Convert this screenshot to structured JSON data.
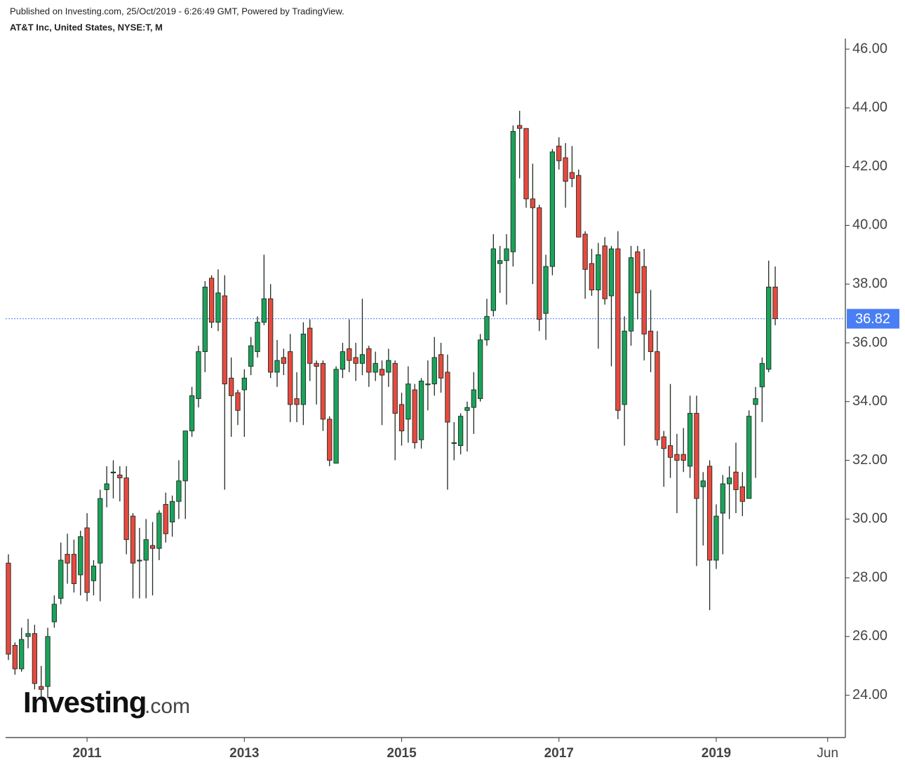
{
  "header": {
    "published": "Published on Investing.com, 25/Oct/2019 - 6:26:49 GMT, Powered by TradingView.",
    "symbol": "AT&T Inc, United States, NYSE:T, M"
  },
  "watermark": {
    "name": "Investing",
    "suffix": ".com"
  },
  "chart_data": {
    "type": "candlestick",
    "categories": [
      null,
      null,
      null,
      null,
      null,
      null,
      null,
      null,
      null,
      null,
      null,
      null,
      "2011",
      null,
      null,
      null,
      null,
      null,
      null,
      null,
      null,
      null,
      null,
      null,
      null,
      null,
      null,
      null,
      null,
      null,
      null,
      null,
      null,
      null,
      null,
      null,
      "2013",
      null,
      null,
      null,
      null,
      null,
      null,
      null,
      null,
      null,
      null,
      null,
      null,
      null,
      null,
      null,
      null,
      null,
      null,
      null,
      null,
      null,
      null,
      null,
      "2015",
      null,
      null,
      null,
      null,
      null,
      null,
      null,
      null,
      null,
      null,
      null,
      null,
      null,
      null,
      null,
      null,
      null,
      null,
      null,
      null,
      null,
      null,
      null,
      "2017",
      null,
      null,
      null,
      null,
      null,
      null,
      null,
      null,
      null,
      null,
      null,
      null,
      null,
      null,
      null,
      null,
      null,
      null,
      null,
      null,
      null,
      null,
      null,
      "2019",
      null,
      null,
      null,
      null,
      null,
      null,
      null,
      null,
      null,
      null,
      null,
      null,
      null,
      null,
      null,
      null,
      "Jun"
    ],
    "open": [
      28.5,
      25.7,
      24.9,
      26.0,
      26.1,
      24.3,
      24.3,
      26.5,
      27.3,
      28.8,
      28.8,
      28.1,
      29.7,
      27.9,
      28.5,
      31.0,
      31.6,
      31.5,
      31.4,
      30.1,
      28.6,
      28.6,
      29.1,
      29.0,
      30.5,
      29.9,
      30.6,
      31.3,
      33.0,
      34.1,
      35.7,
      38.2,
      36.7,
      37.6,
      34.8,
      34.3,
      34.4,
      35.2,
      35.7,
      36.7,
      37.5,
      35.0,
      35.5,
      35.7,
      34.1,
      33.9,
      36.5,
      35.3,
      35.3,
      33.4,
      31.9,
      35.1,
      35.8,
      35.5,
      35.3,
      35.8,
      35.0,
      35.1,
      35.0,
      35.3,
      33.9,
      33.4,
      34.4,
      32.7,
      34.6,
      34.6,
      35.6,
      35.0,
      32.6,
      32.5,
      33.7,
      33.8,
      34.1,
      36.1,
      37.1,
      38.7,
      38.8,
      39.1,
      43.4,
      43.3,
      40.9,
      40.6,
      37.0,
      38.6,
      42.7,
      42.3,
      41.8,
      41.7,
      39.7,
      38.7,
      37.8,
      39.3,
      37.6,
      39.2,
      33.9,
      36.4,
      39.1,
      38.6,
      36.4,
      35.7,
      32.8,
      32.5,
      32.2,
      32.2,
      31.8,
      33.6,
      31.1,
      31.8,
      28.6,
      30.2,
      31.2,
      31.6,
      31.1,
      30.7,
      33.9,
      34.5,
      35.1,
      37.9,
      null,
      null,
      null,
      null,
      null,
      null,
      null,
      null
    ],
    "high": [
      28.8,
      25.8,
      26.3,
      26.6,
      26.4,
      25.0,
      26.3,
      27.4,
      29.2,
      29.5,
      29.3,
      29.6,
      30.2,
      28.6,
      31.0,
      31.8,
      32.0,
      31.8,
      31.8,
      30.2,
      29.7,
      30.0,
      29.9,
      30.3,
      30.9,
      30.8,
      32.0,
      33.0,
      34.5,
      35.9,
      38.1,
      38.3,
      38.5,
      38.3,
      35.5,
      34.4,
      35.1,
      36.2,
      36.9,
      39.0,
      38.0,
      36.1,
      35.8,
      36.3,
      35.0,
      36.7,
      36.8,
      35.4,
      35.4,
      33.5,
      35.2,
      36.0,
      36.8,
      36.0,
      37.5,
      35.9,
      35.7,
      35.4,
      35.8,
      35.4,
      34.3,
      35.2,
      34.6,
      34.8,
      35.4,
      36.2,
      36.0,
      35.6,
      33.3,
      33.6,
      34.0,
      35.0,
      36.3,
      37.5,
      39.7,
      39.3,
      39.7,
      43.4,
      43.9,
      43.3,
      42.1,
      40.7,
      39.0,
      42.6,
      43.0,
      42.8,
      42.7,
      41.9,
      39.8,
      39.2,
      39.4,
      39.6,
      39.3,
      39.8,
      36.9,
      39.3,
      39.3,
      39.2,
      37.8,
      36.4,
      33.0,
      34.6,
      32.9,
      33.1,
      34.2,
      34.2,
      31.6,
      32.0,
      30.5,
      31.5,
      31.8,
      32.6,
      31.6,
      33.7,
      34.5,
      35.5,
      38.8,
      38.6,
      null,
      null,
      null,
      null,
      null,
      null,
      null,
      null
    ],
    "low": [
      25.2,
      24.7,
      24.8,
      25.6,
      24.2,
      23.9,
      23.9,
      26.3,
      27.1,
      27.8,
      27.5,
      27.4,
      27.2,
      27.4,
      27.2,
      30.4,
      30.7,
      30.6,
      28.8,
      27.3,
      27.3,
      27.3,
      27.4,
      28.6,
      29.2,
      29.4,
      30.0,
      30.0,
      32.8,
      33.8,
      35.0,
      36.5,
      36.4,
      31.0,
      32.8,
      33.2,
      32.8,
      34.9,
      35.5,
      36.6,
      34.8,
      34.5,
      34.9,
      33.3,
      33.3,
      33.2,
      34.7,
      33.9,
      33.0,
      31.8,
      31.9,
      34.8,
      35.0,
      34.7,
      34.9,
      34.5,
      34.7,
      33.2,
      34.5,
      32.0,
      32.5,
      32.6,
      32.4,
      32.4,
      33.7,
      34.2,
      34.3,
      31.0,
      32.0,
      32.2,
      32.3,
      32.9,
      34.0,
      35.9,
      36.9,
      37.7,
      37.3,
      38.6,
      41.6,
      40.6,
      38.0,
      36.4,
      36.1,
      38.3,
      41.9,
      40.6,
      41.3,
      39.6,
      37.5,
      37.6,
      35.8,
      37.3,
      35.2,
      33.4,
      32.5,
      35.9,
      36.8,
      35.4,
      35.0,
      32.5,
      31.1,
      31.4,
      30.2,
      31.6,
      31.4,
      28.4,
      29.1,
      26.9,
      28.3,
      28.8,
      30.0,
      30.2,
      30.1,
      30.7,
      31.4,
      33.3,
      35.0,
      36.6,
      null,
      null,
      null,
      null,
      null,
      null,
      null,
      null
    ],
    "close": [
      25.4,
      24.9,
      25.9,
      26.1,
      24.4,
      24.2,
      26.0,
      27.1,
      28.6,
      28.5,
      27.8,
      29.4,
      27.5,
      28.4,
      30.7,
      31.2,
      31.6,
      31.4,
      29.3,
      28.5,
      28.6,
      29.3,
      29.0,
      30.2,
      29.5,
      30.6,
      31.3,
      33.0,
      34.2,
      35.7,
      37.9,
      36.7,
      37.7,
      34.6,
      34.2,
      33.7,
      34.8,
      35.9,
      36.7,
      37.5,
      35.0,
      35.4,
      35.3,
      33.9,
      33.9,
      36.3,
      35.3,
      35.2,
      33.4,
      32.0,
      35.1,
      35.7,
      35.4,
      35.3,
      35.6,
      35.0,
      35.3,
      34.9,
      35.4,
      33.6,
      33.0,
      34.6,
      32.6,
      34.7,
      34.6,
      35.5,
      34.8,
      33.3,
      32.6,
      33.5,
      33.8,
      34.4,
      36.1,
      36.9,
      39.2,
      38.8,
      39.2,
      43.2,
      43.3,
      40.9,
      40.6,
      36.8,
      38.6,
      42.5,
      42.2,
      41.5,
      41.6,
      39.6,
      38.5,
      37.8,
      39.0,
      37.5,
      39.2,
      33.7,
      36.4,
      38.9,
      37.7,
      36.3,
      35.7,
      32.7,
      32.4,
      32.1,
      32.0,
      32.0,
      33.6,
      30.7,
      31.3,
      28.6,
      30.1,
      31.2,
      31.4,
      31.0,
      30.6,
      33.5,
      34.1,
      35.3,
      37.9,
      36.82,
      null,
      null,
      null,
      null,
      null,
      null,
      null,
      null
    ],
    "up_color": "#1aa35a",
    "down_color": "#e8493f",
    "last_price": 36.82,
    "last_price_color": "#4a7ef5",
    "ylim": [
      22.56,
      46.36
    ],
    "yticks": [
      {
        "value": 24,
        "label": "24.00"
      },
      {
        "value": 26,
        "label": "26.00"
      },
      {
        "value": 28,
        "label": "28.00"
      },
      {
        "value": 30,
        "label": "30.00"
      },
      {
        "value": 32,
        "label": "32.00"
      },
      {
        "value": 34,
        "label": "34.00"
      },
      {
        "value": 36,
        "label": "36.00"
      },
      {
        "value": 38,
        "label": "38.00"
      },
      {
        "value": 40,
        "label": "40.00"
      },
      {
        "value": 42,
        "label": "42.00"
      },
      {
        "value": 44,
        "label": "44.00"
      },
      {
        "value": 46,
        "label": "46.00"
      }
    ],
    "grid": false
  }
}
